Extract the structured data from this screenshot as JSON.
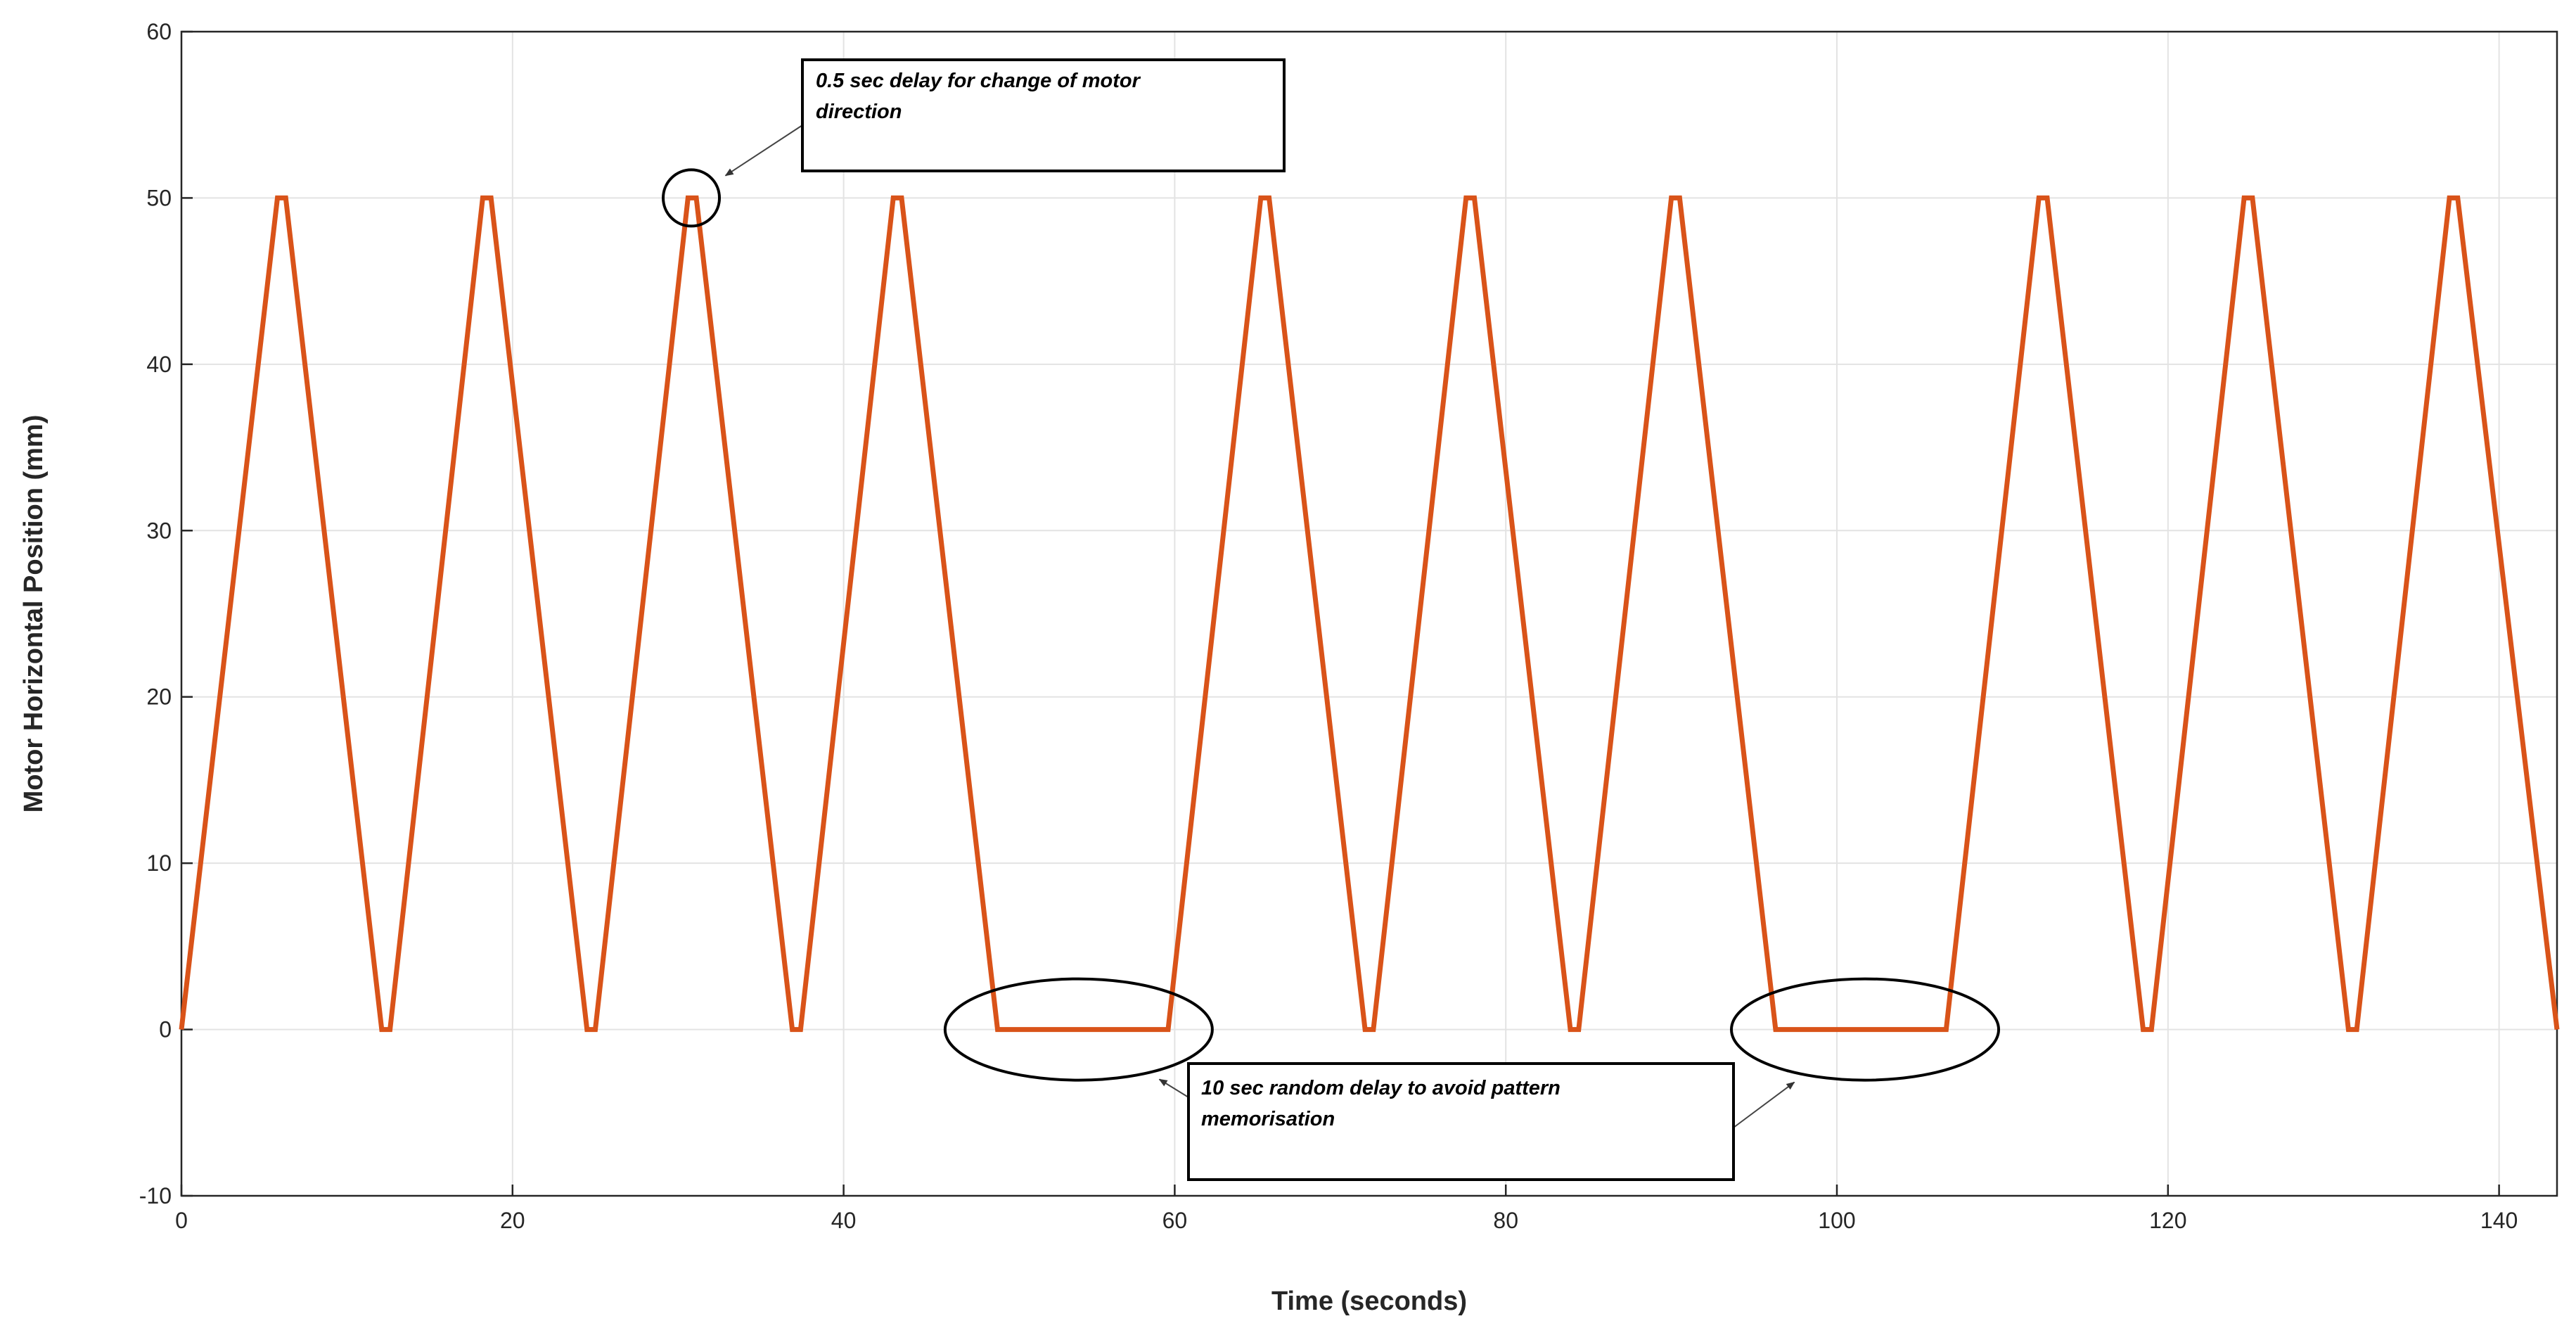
{
  "chart_data": {
    "type": "line",
    "xlabel": "Time (seconds)",
    "ylabel": "Motor Horizontal Position (mm)",
    "xlim": [
      0,
      143.5
    ],
    "ylim": [
      -10,
      60
    ],
    "x_ticks": [
      "0",
      "20",
      "40",
      "60",
      "80",
      "100",
      "120",
      "140"
    ],
    "y_ticks": [
      "60",
      "50",
      "40",
      "30",
      "20",
      "10",
      "0",
      "-10"
    ],
    "grid": true,
    "line_color": "#d95319",
    "series": [
      {
        "x": [
          0,
          5.8,
          6.3,
          12.1,
          12.6,
          18.2,
          18.7,
          24.5,
          25.0,
          30.6,
          31.1,
          36.9,
          37.4,
          43.0,
          43.5,
          49.3,
          59.6,
          65.2,
          65.7,
          71.5,
          72.0,
          77.6,
          78.1,
          83.9,
          84.4,
          90.0,
          90.5,
          96.3,
          106.6,
          112.2,
          112.7,
          118.5,
          119.0,
          124.6,
          125.1,
          130.9,
          131.4,
          137.0,
          137.5,
          143.5
        ],
        "y": [
          0,
          50,
          50,
          0,
          0,
          50,
          50,
          0,
          0,
          50,
          50,
          0,
          0,
          50,
          50,
          0,
          0,
          50,
          50,
          0,
          0,
          50,
          50,
          0,
          0,
          50,
          50,
          0,
          0,
          50,
          50,
          0,
          0,
          50,
          50,
          0,
          0,
          50,
          50,
          0
        ]
      }
    ],
    "annotations": [
      {
        "lines": [
          "0.5 sec delay for change of motor",
          "direction"
        ],
        "target_circles": [
          {
            "x": 30.8,
            "y": 50
          }
        ]
      },
      {
        "lines": [
          "10 sec random delay to avoid pattern",
          "memorisation"
        ],
        "target_circles": [
          {
            "x": 54.2,
            "y": 0
          },
          {
            "x": 101.7,
            "y": 0
          }
        ]
      }
    ]
  }
}
